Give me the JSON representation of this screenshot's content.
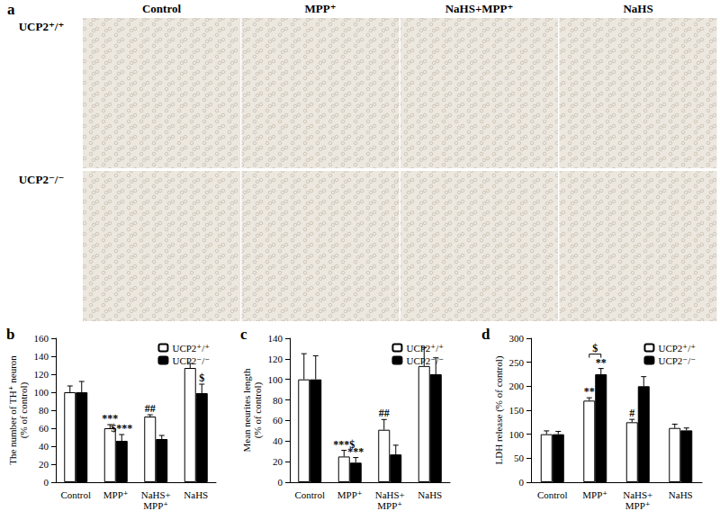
{
  "panel_a": {
    "panel": "a",
    "columns": [
      "Control",
      "MPP⁺",
      "NaHS+MPP⁺",
      "NaHS"
    ],
    "rows": [
      "UCP2⁺/⁺",
      "UCP2⁻/⁻"
    ]
  },
  "chart_data": [
    {
      "panel": "b",
      "type": "bar",
      "ylabel": "The number of TH⁺ neuron\n(% of control)",
      "categories": [
        "Control",
        "MPP⁺",
        "NaHS+\nMPP⁺",
        "NaHS"
      ],
      "series": [
        {
          "name": "UCP2⁺/⁺",
          "color": "#ffffff",
          "values": [
            100,
            60,
            73,
            127
          ],
          "errors": [
            7,
            4,
            2,
            5
          ],
          "annotations": [
            null,
            "***",
            "##",
            null
          ]
        },
        {
          "name": "UCP2⁻/⁻",
          "color": "#000000",
          "values": [
            100,
            46,
            48,
            99
          ],
          "errors": [
            12,
            7,
            4,
            10
          ],
          "annotations": [
            null,
            "$***",
            null,
            "$"
          ]
        }
      ],
      "ylim": [
        0,
        160
      ],
      "yticks": [
        0,
        20,
        40,
        60,
        80,
        100,
        120,
        140,
        160
      ],
      "grid": false,
      "legend": "top-right"
    },
    {
      "panel": "c",
      "type": "bar",
      "ylabel": "Mean neurites length\n(% of control)",
      "categories": [
        "Control",
        "MPP⁺",
        "NaHS+\nMPP⁺",
        "NaHS"
      ],
      "series": [
        {
          "name": "UCP2⁺/⁺",
          "color": "#ffffff",
          "values": [
            100,
            25,
            51,
            113
          ],
          "errors": [
            25,
            6,
            10,
            18
          ],
          "annotations": [
            null,
            "***$",
            "##",
            null
          ]
        },
        {
          "name": "UCP2⁻/⁻",
          "color": "#000000",
          "values": [
            100,
            19,
            27,
            105
          ],
          "errors": [
            23,
            5,
            9,
            16
          ],
          "annotations": [
            null,
            "***",
            null,
            null
          ]
        }
      ],
      "ylim": [
        0,
        140
      ],
      "yticks": [
        0,
        20,
        40,
        60,
        80,
        100,
        120,
        140
      ],
      "grid": false,
      "legend": "top-right"
    },
    {
      "panel": "d",
      "type": "bar",
      "ylabel": "LDH release (% of control)",
      "categories": [
        "Control",
        "MPP⁺",
        "NaHS+\nMPP⁺",
        "NaHS"
      ],
      "series": [
        {
          "name": "UCP2⁺/⁺",
          "color": "#ffffff",
          "values": [
            100,
            170,
            125,
            113
          ],
          "errors": [
            7,
            6,
            6,
            8
          ],
          "annotations": [
            null,
            "**",
            "#",
            null
          ]
        },
        {
          "name": "UCP2⁻/⁻",
          "color": "#000000",
          "values": [
            100,
            225,
            200,
            108
          ],
          "errors": [
            6,
            12,
            20,
            5
          ],
          "annotations": [
            null,
            "**",
            null,
            null
          ]
        }
      ],
      "comparisons": [
        {
          "category": "MPP⁺",
          "label": "$"
        }
      ],
      "ylim": [
        0,
        300
      ],
      "yticks": [
        0,
        50,
        100,
        150,
        200,
        250,
        300
      ],
      "grid": false,
      "legend": "top-right"
    }
  ]
}
